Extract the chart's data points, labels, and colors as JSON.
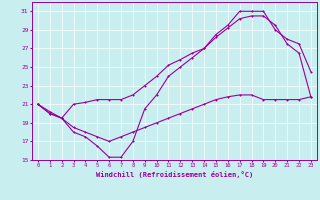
{
  "xlabel": "Windchill (Refroidissement éolien,°C)",
  "bg_color": "#c8eef0",
  "line_color": "#990099",
  "grid_color": "#ffffff",
  "xlim": [
    -0.5,
    23.5
  ],
  "ylim": [
    15,
    32
  ],
  "xticks": [
    0,
    1,
    2,
    3,
    4,
    5,
    6,
    7,
    8,
    9,
    10,
    11,
    12,
    13,
    14,
    15,
    16,
    17,
    18,
    19,
    20,
    21,
    22,
    23
  ],
  "yticks": [
    15,
    17,
    19,
    21,
    23,
    25,
    27,
    29,
    31
  ],
  "line1_x": [
    0,
    1,
    2,
    3,
    4,
    5,
    6,
    7,
    8,
    9,
    10,
    11,
    12,
    13,
    14,
    15,
    16,
    17,
    18,
    19,
    20,
    21,
    22,
    23
  ],
  "line1_y": [
    21.0,
    20.0,
    19.5,
    18.0,
    17.5,
    16.5,
    15.3,
    15.3,
    17.0,
    20.5,
    22.0,
    24.0,
    25.0,
    26.0,
    27.0,
    28.5,
    29.5,
    31.0,
    31.0,
    31.0,
    29.0,
    28.0,
    27.5,
    24.5
  ],
  "line2_x": [
    0,
    1,
    2,
    3,
    4,
    5,
    6,
    7,
    8,
    9,
    10,
    11,
    12,
    13,
    14,
    15,
    16,
    17,
    18,
    19,
    20,
    21,
    22,
    23
  ],
  "line2_y": [
    21.0,
    20.0,
    19.5,
    21.0,
    21.2,
    21.5,
    21.5,
    21.5,
    22.0,
    23.0,
    24.0,
    25.2,
    25.8,
    26.5,
    27.0,
    28.2,
    29.2,
    30.2,
    30.5,
    30.5,
    29.5,
    27.5,
    26.5,
    21.8
  ],
  "line3_x": [
    0,
    1,
    2,
    3,
    4,
    5,
    6,
    7,
    8,
    9,
    10,
    11,
    12,
    13,
    14,
    15,
    16,
    17,
    18,
    19,
    20,
    21,
    22,
    23
  ],
  "line3_y": [
    21.0,
    20.2,
    19.5,
    18.5,
    18.0,
    17.5,
    17.0,
    17.5,
    18.0,
    18.5,
    19.0,
    19.5,
    20.0,
    20.5,
    21.0,
    21.5,
    21.8,
    22.0,
    22.0,
    21.5,
    21.5,
    21.5,
    21.5,
    21.8
  ]
}
